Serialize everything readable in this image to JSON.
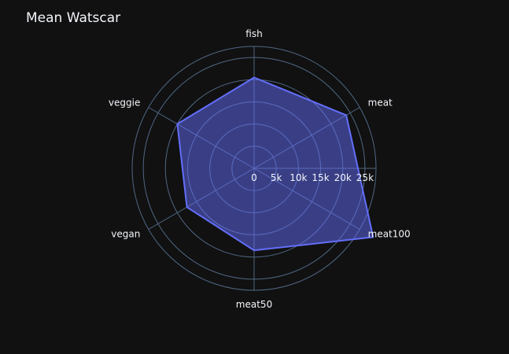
{
  "page": {
    "title": "Mean Watscar"
  },
  "colors": {
    "background": "#111111",
    "grid": "#506784",
    "text": "#f2f5fa",
    "series": "#636efa"
  },
  "chart_data": {
    "type": "radar",
    "title": "Mean Watscar",
    "categories": [
      "fish",
      "meat",
      "meat100",
      "meat50",
      "vegan",
      "veggie"
    ],
    "series": [
      {
        "values": [
          20500,
          24000,
          31000,
          18500,
          17500,
          20000
        ]
      }
    ],
    "radial_range": [
      0,
      27500
    ],
    "radial_ticks": [
      0,
      5000,
      10000,
      15000,
      20000,
      25000
    ],
    "radial_tick_labels": [
      "0",
      "5k",
      "10k",
      "15k",
      "20k",
      "25k"
    ],
    "grid": true,
    "legend": "none"
  }
}
